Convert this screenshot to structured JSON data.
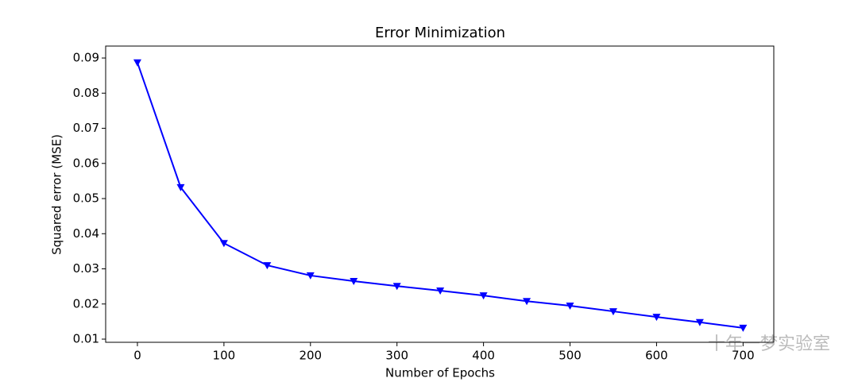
{
  "chart_data": {
    "type": "line",
    "title": "Error Minimization",
    "x_label": "Number of Epochs",
    "y_label": "Squared error (MSE)",
    "x": [
      0,
      50,
      100,
      150,
      200,
      250,
      300,
      350,
      400,
      450,
      500,
      550,
      600,
      650,
      700
    ],
    "series": [
      {
        "name": "MSE",
        "color": "#0000ff",
        "marker": "triangle-down",
        "values": [
          0.0887,
          0.0532,
          0.0373,
          0.031,
          0.0281,
          0.0265,
          0.0251,
          0.0238,
          0.0224,
          0.0208,
          0.0195,
          0.0179,
          0.0163,
          0.0148,
          0.0132
        ]
      }
    ],
    "xlim": [
      -36.7,
      735.5
    ],
    "ylim": [
      0.0091,
      0.0934
    ],
    "xticks": [
      0,
      100,
      200,
      300,
      400,
      500,
      600,
      700
    ],
    "yticks": [
      0.01,
      0.02,
      0.03,
      0.04,
      0.05,
      0.06,
      0.07,
      0.08,
      0.09
    ],
    "grid": false,
    "watermark": "十年一梦实验室"
  }
}
